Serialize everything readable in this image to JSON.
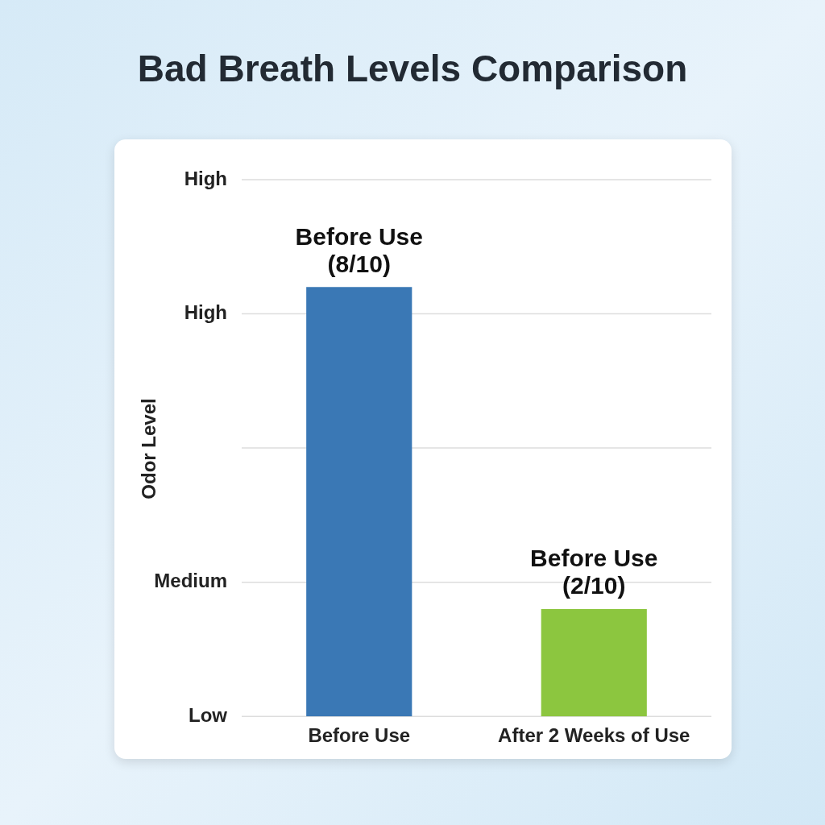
{
  "chart_data": {
    "type": "bar",
    "title": "Bad Breath Levels Comparison",
    "ylabel": "Odor Level",
    "categories": [
      "Before Use",
      "After 2 Weeks of Use"
    ],
    "values": [
      8,
      2
    ],
    "colors": [
      "#3a78b5",
      "#8cc63f"
    ],
    "value_labels": [
      "Before Use\n(8/10)",
      "Before Use\n(2/10)"
    ],
    "ylim": [
      0,
      10
    ],
    "tick_labels": "x",
    "ref_lines": [
      {
        "axis": "y",
        "value": 10,
        "label": "High",
        "color": "#dddddd"
      },
      {
        "axis": "y",
        "value": 7.5,
        "label": "High",
        "color": "#dddddd"
      },
      {
        "axis": "y",
        "value": 5,
        "label": null,
        "color": "#dddddd"
      },
      {
        "axis": "y",
        "value": 2.5,
        "label": "Medium",
        "color": "#dddddd"
      },
      {
        "axis": "y",
        "value": 0,
        "label": "Low",
        "color": "#dddddd"
      }
    ],
    "legend": false
  }
}
